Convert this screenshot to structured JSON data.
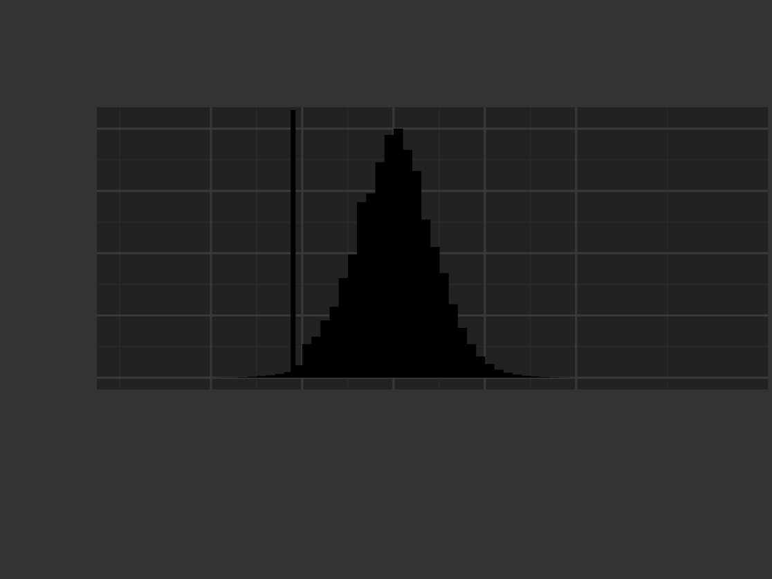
{
  "colors": {
    "page_background": "#333333",
    "panel_background": "#222222",
    "grid_major": "#3a3a3a",
    "grid_minor": "#2a2a2a",
    "bars": "#000000",
    "text": "#f2f2f2"
  },
  "chart_data": {
    "type": "bar",
    "subtype": "histogram",
    "title": "",
    "xlabel": "",
    "ylabel": "",
    "xlim": [
      -6.5,
      8.2
    ],
    "ylim": [
      0,
      2050
    ],
    "grid": true,
    "legend": "none",
    "x_ticks": [
      -4,
      -2,
      0,
      2,
      4
    ],
    "y_ticks": [
      0,
      500,
      1000,
      1500,
      2000
    ],
    "x_tick_labels": [
      "",
      "",
      "",
      "",
      ""
    ],
    "y_tick_labels": [
      "",
      "",
      "",
      "",
      ""
    ],
    "bin_width": 0.2,
    "bins": [
      {
        "x0": -4.0,
        "x1": -3.8,
        "count": 1
      },
      {
        "x0": -3.8,
        "x1": -3.6,
        "count": 2
      },
      {
        "x0": -3.6,
        "x1": -3.4,
        "count": 3
      },
      {
        "x0": -3.4,
        "x1": -3.2,
        "count": 5
      },
      {
        "x0": -3.2,
        "x1": -3.0,
        "count": 8
      },
      {
        "x0": -3.0,
        "x1": -2.8,
        "count": 13
      },
      {
        "x0": -2.8,
        "x1": -2.6,
        "count": 20
      },
      {
        "x0": -2.6,
        "x1": -2.4,
        "count": 30
      },
      {
        "x0": -2.4,
        "x1": -2.2,
        "count": 45
      },
      {
        "x0": -2.2,
        "x1": -2.0,
        "count": 100
      },
      {
        "x0": -2.0,
        "x1": -1.8,
        "count": 270
      },
      {
        "x0": -1.8,
        "x1": -1.6,
        "count": 330
      },
      {
        "x0": -1.6,
        "x1": -1.4,
        "count": 460
      },
      {
        "x0": -1.4,
        "x1": -1.2,
        "count": 570
      },
      {
        "x0": -1.2,
        "x1": -1.0,
        "count": 800
      },
      {
        "x0": -1.0,
        "x1": -0.8,
        "count": 990
      },
      {
        "x0": -0.8,
        "x1": -0.6,
        "count": 1410
      },
      {
        "x0": -0.6,
        "x1": -0.4,
        "count": 1480
      },
      {
        "x0": -0.4,
        "x1": -0.2,
        "count": 1730
      },
      {
        "x0": -0.2,
        "x1": 0.0,
        "count": 1950
      },
      {
        "x0": 0.0,
        "x1": 0.2,
        "count": 2000
      },
      {
        "x0": 0.2,
        "x1": 0.4,
        "count": 1830
      },
      {
        "x0": 0.4,
        "x1": 0.6,
        "count": 1660
      },
      {
        "x0": 0.6,
        "x1": 0.8,
        "count": 1270
      },
      {
        "x0": 0.8,
        "x1": 1.0,
        "count": 1050
      },
      {
        "x0": 1.0,
        "x1": 1.2,
        "count": 840
      },
      {
        "x0": 1.2,
        "x1": 1.4,
        "count": 590
      },
      {
        "x0": 1.4,
        "x1": 1.6,
        "count": 400
      },
      {
        "x0": 1.6,
        "x1": 1.8,
        "count": 270
      },
      {
        "x0": 1.8,
        "x1": 2.0,
        "count": 170
      },
      {
        "x0": 2.0,
        "x1": 2.2,
        "count": 110
      },
      {
        "x0": 2.2,
        "x1": 2.4,
        "count": 65
      },
      {
        "x0": 2.4,
        "x1": 2.6,
        "count": 40
      },
      {
        "x0": 2.6,
        "x1": 2.8,
        "count": 25
      },
      {
        "x0": 2.8,
        "x1": 3.0,
        "count": 15
      },
      {
        "x0": 3.0,
        "x1": 3.2,
        "count": 10
      },
      {
        "x0": 3.2,
        "x1": 3.4,
        "count": 6
      },
      {
        "x0": 3.4,
        "x1": 3.6,
        "count": 4
      },
      {
        "x0": 3.6,
        "x1": 3.8,
        "count": 2
      },
      {
        "x0": 3.8,
        "x1": 4.0,
        "count": 1
      }
    ],
    "reference_line": {
      "x": -2.2,
      "y_top": 2150
    }
  }
}
